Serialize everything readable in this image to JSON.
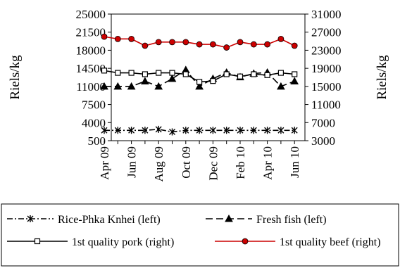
{
  "chart_data": {
    "type": "line",
    "title": "",
    "x": [
      "Apr 09",
      "May 09",
      "Jun 09",
      "Jul 09",
      "Aug 09",
      "Sep 09",
      "Oct 09",
      "Nov 09",
      "Dec 09",
      "Jan 10",
      "Feb 10",
      "Mar 10",
      "Apr 10",
      "May 10",
      "Jun 10"
    ],
    "x_tick_labels": [
      "Apr 09",
      "Jun 09",
      "Aug 09",
      "Oct 09",
      "Dec 09",
      "Feb 10",
      "Apr 10",
      "Jun 10"
    ],
    "y_left": {
      "label": "Riels/kg",
      "ticks": [
        "25000",
        "21500",
        "18000",
        "14500",
        "11000",
        "7500",
        "4000",
        "500"
      ],
      "min": 500,
      "max": 25000
    },
    "y_right": {
      "label": "Riels/kg",
      "ticks": [
        "31000",
        "27000",
        "23000",
        "19000",
        "15000",
        "11000",
        "7000",
        "3000"
      ],
      "min": 3000,
      "max": 31000
    },
    "grid": false,
    "legend_position": "bottom",
    "series": [
      {
        "name": "Rice-Phka Knhei (left)",
        "axis": "left",
        "color": "#000000",
        "line_style": "dash-dot",
        "marker": "star",
        "values": [
          2500,
          2500,
          2500,
          2500,
          2700,
          2200,
          2500,
          2500,
          2500,
          2500,
          2500,
          2500,
          2500,
          2500,
          2500
        ]
      },
      {
        "name": "Fresh fish (left)",
        "axis": "left",
        "color": "#000000",
        "line_style": "long-dash",
        "marker": "triangle",
        "values": [
          11000,
          11000,
          11000,
          12000,
          11000,
          12500,
          14200,
          11000,
          12500,
          13700,
          12800,
          13500,
          13700,
          11000,
          12000
        ]
      },
      {
        "name": "1st quality pork (right)",
        "axis": "right",
        "color": "#000000",
        "line_style": "solid",
        "marker": "square",
        "values": [
          18500,
          18000,
          18000,
          17700,
          18000,
          18000,
          17700,
          16000,
          16200,
          17700,
          17200,
          17700,
          17500,
          18000,
          17700
        ]
      },
      {
        "name": "1st quality beef (right)",
        "axis": "right",
        "color": "#cc0000",
        "line_style": "solid",
        "marker": "circle",
        "values": [
          26000,
          25500,
          25500,
          24000,
          24800,
          24800,
          24800,
          24300,
          24300,
          23600,
          24800,
          24300,
          24300,
          25500,
          24000
        ]
      }
    ]
  }
}
